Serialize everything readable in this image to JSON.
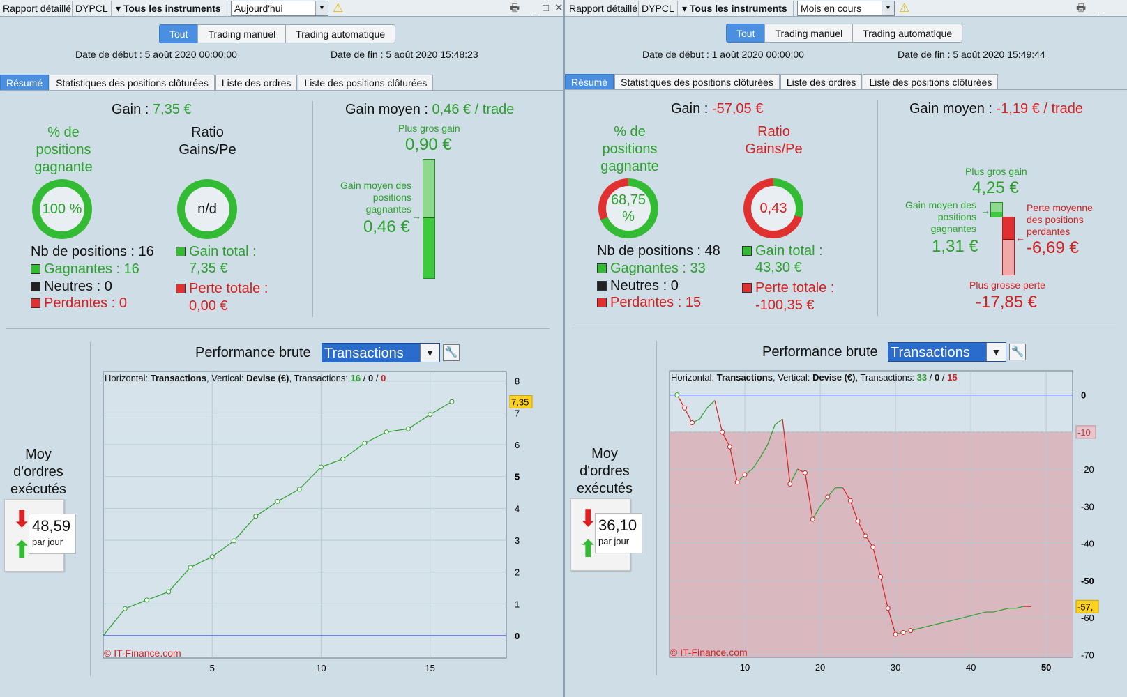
{
  "panels": [
    {
      "toolbar": {
        "report": "Rapport détaillé",
        "code": "DYPCL",
        "instruments": "Tous les instruments",
        "period": "Aujourd'hui"
      },
      "segments": [
        "Tout",
        "Trading manuel",
        "Trading automatique"
      ],
      "start_date": "Date de début : 5 août 2020 00:00:00",
      "end_date": "Date de fin : 5 août 2020 15:48:23",
      "tabs": [
        "Résumé",
        "Statistiques des positions clôturées",
        "Liste des ordres",
        "Liste des positions clôturées"
      ],
      "gain_label": "Gain :",
      "gain_value": "7,35 €",
      "win_pct_title": "% de positions gagnante",
      "win_pct_value": "100 %",
      "win_fraction": 1.0,
      "ratio_title": "Ratio Gains/Pe",
      "ratio_value": "n/d",
      "nb_positions": "Nb de positions : 16",
      "winners": "Gagnantes : 16",
      "neutral": "Neutres : 0",
      "losers": "Perdantes : 0",
      "gain_total_label": "Gain total :",
      "gain_total_value": "7,35 €",
      "loss_total_label": "Perte totale :",
      "loss_total_value": "0,00 €",
      "avg_gain_label": "Gain moyen :",
      "avg_gain_value": "0,46 € / trade",
      "biggest_gain_label": "Plus gros gain",
      "biggest_gain_value": "0,90 €",
      "avg_win_label": "Gain moyen des positions gagnantes",
      "avg_win_value": "0,46 €",
      "perf_label": "Performance brute",
      "perf_select": "Transactions",
      "orders_label": "Moy d'ordres exécutés :",
      "orders_value": "48,59",
      "orders_unit": "par jour",
      "chart_legend": {
        "h": "Horizontal:",
        "h_val": "Transactions",
        "v": ", Vertical:",
        "v_val": "Devise (€)",
        "t": ", Transactions:",
        "w": "16",
        "n": "0",
        "l": "0",
        "sep": "/"
      },
      "copyright": "© IT-Finance.com",
      "chart_data": {
        "type": "line",
        "x": [
          0,
          1,
          2,
          3,
          4,
          5,
          6,
          7,
          8,
          9,
          10,
          11,
          12,
          13,
          14,
          15,
          16
        ],
        "values": [
          0,
          0.85,
          1.12,
          1.38,
          2.15,
          2.48,
          2.98,
          3.75,
          4.22,
          4.6,
          5.3,
          5.55,
          6.05,
          6.4,
          6.5,
          6.95,
          7.35
        ],
        "xlim": [
          0,
          18.5
        ],
        "ylim": [
          -0.7,
          8.3
        ],
        "xticks": [
          5,
          10,
          15
        ],
        "yticks": [
          0,
          1,
          2,
          3,
          4,
          5,
          6,
          7,
          8
        ],
        "bold_yticks": [
          0,
          5
        ],
        "last_label": "7,35",
        "color": "#2ca02c"
      }
    },
    {
      "toolbar": {
        "report": "Rapport détaillé",
        "code": "DYPCL",
        "instruments": "Tous les instruments",
        "period": "Mois en cours"
      },
      "segments": [
        "Tout",
        "Trading manuel",
        "Trading automatique"
      ],
      "start_date": "Date de début : 1 août 2020 00:00:00",
      "end_date": "Date de fin : 5 août 2020 15:49:44",
      "tabs": [
        "Résumé",
        "Statistiques des positions clôturées",
        "Liste des ordres",
        "Liste des positions clôturées"
      ],
      "gain_label": "Gain :",
      "gain_value": "-57,05 €",
      "win_pct_title": "% de positions gagnante",
      "win_pct_value": "68,75 %",
      "win_fraction": 0.6875,
      "ratio_title": "Ratio Gains/Pe",
      "ratio_value": "0,43",
      "ratio_fraction": 0.3,
      "nb_positions": "Nb de positions : 48",
      "winners": "Gagnantes : 33",
      "neutral": "Neutres : 0",
      "losers": "Perdantes : 15",
      "gain_total_label": "Gain total :",
      "gain_total_value": "43,30 €",
      "loss_total_label": "Perte totale :",
      "loss_total_value": "-100,35 €",
      "avg_gain_label": "Gain moyen :",
      "avg_gain_value": "-1,19 € / trade",
      "biggest_gain_label": "Plus gros gain",
      "biggest_gain_value": "4,25 €",
      "avg_win_label": "Gain moyen des positions gagnantes",
      "avg_win_value": "1,31 €",
      "avg_loss_label": "Perte moyenne des positions perdantes",
      "avg_loss_value": "-6,69 €",
      "biggest_loss_label": "Plus grosse perte",
      "biggest_loss_value": "-17,85 €",
      "perf_label": "Performance brute",
      "perf_select": "Transactions",
      "orders_label": "Moy d'ordres exécutés :",
      "orders_value": "36,10",
      "orders_unit": "par jour",
      "chart_legend": {
        "h": "Horizontal:",
        "h_val": "Transactions",
        "v": ", Vertical:",
        "v_val": "Devise (€)",
        "t": ", Transactions:",
        "w": "33",
        "n": "0",
        "l": "15",
        "sep": "/"
      },
      "copyright": "© IT-Finance.com",
      "chart_data": {
        "type": "line",
        "x": [
          1,
          2,
          3,
          4,
          5,
          6,
          7,
          8,
          9,
          10,
          11,
          12,
          13,
          14,
          15,
          16,
          17,
          18,
          19,
          20,
          21,
          22,
          23,
          24,
          25,
          26,
          27,
          28,
          29,
          30,
          31,
          32,
          33,
          34,
          35,
          36,
          37,
          38,
          39,
          40,
          41,
          42,
          43,
          44,
          45,
          46,
          47,
          48
        ],
        "values": [
          0,
          -3.5,
          -7.5,
          -6.5,
          -3.5,
          -1.5,
          -10,
          -14,
          -23.5,
          -21.5,
          -20,
          -17,
          -13.5,
          -8,
          -6.5,
          -24,
          -20,
          -21,
          -33.5,
          -30,
          -27.5,
          -25,
          -25,
          -28.5,
          -34,
          -38,
          -41,
          -49,
          -57.5,
          -64.5,
          -64,
          -63.5,
          -63,
          -62.5,
          -62,
          -61.5,
          -61,
          -60.5,
          -60,
          -59.5,
          -59,
          -58.5,
          -58.5,
          -58,
          -57.5,
          -57.5,
          -57,
          -57.05
        ],
        "loss_points": [
          2,
          3,
          8,
          9,
          10,
          18,
          21,
          27,
          28,
          29,
          30,
          31,
          32
        ],
        "xlim": [
          0,
          53.5
        ],
        "ylim": [
          -70.7,
          6.5
        ],
        "xticks": [
          10,
          20,
          30,
          40,
          50
        ],
        "yticks": [
          0,
          -10,
          -20,
          -30,
          -40,
          -50,
          -60,
          -70
        ],
        "bold_yticks": [
          0,
          -50
        ],
        "hline_value": -10,
        "last_label": "-57,",
        "color_up": "#2ca02c",
        "color_down": "#d32020"
      }
    }
  ],
  "colors": {
    "green": "#2ca02c",
    "red": "#d32020",
    "accent": "#4a8fe0"
  }
}
